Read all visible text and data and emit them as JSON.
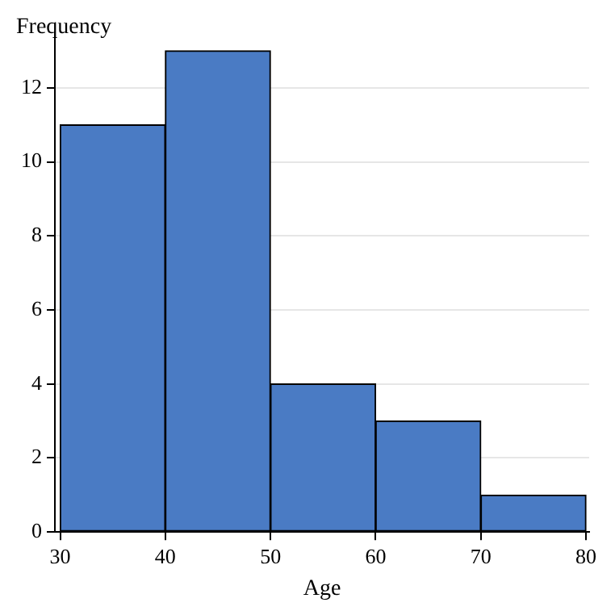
{
  "chart_data": {
    "type": "histogram",
    "xlabel": "Age",
    "ylabel": "Frequency",
    "bins": [
      30,
      40,
      50,
      60,
      70,
      80
    ],
    "values": [
      11,
      13,
      4,
      3,
      1
    ],
    "color": "#4a7bc4",
    "xlim": [
      29.5,
      80.3
    ],
    "xticks": [
      30,
      40,
      50,
      60,
      70,
      80
    ],
    "ylim": [
      0,
      13.5
    ],
    "yticks": [
      0,
      2,
      4,
      6,
      8,
      10,
      12
    ],
    "grid": "y",
    "legend": false
  }
}
